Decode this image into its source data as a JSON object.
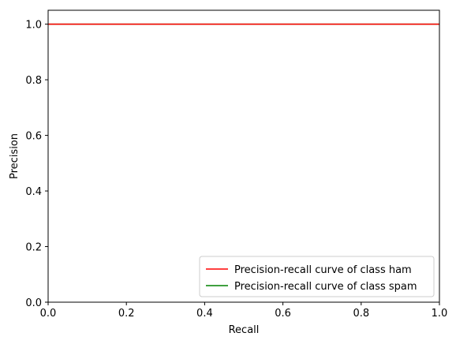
{
  "chart_data": {
    "type": "line",
    "title": "",
    "xlabel": "Recall",
    "ylabel": "Precision",
    "xlim": [
      0.0,
      1.0
    ],
    "ylim": [
      0.0,
      1.05
    ],
    "x_ticks": [
      0.0,
      0.2,
      0.4,
      0.6,
      0.8,
      1.0
    ],
    "x_tick_labels": [
      "0.0",
      "0.2",
      "0.4",
      "0.6",
      "0.8",
      "1.0"
    ],
    "y_ticks": [
      0.0,
      0.2,
      0.4,
      0.6,
      0.8,
      1.0
    ],
    "y_tick_labels": [
      "0.0",
      "0.2",
      "0.4",
      "0.6",
      "0.8",
      "1.0"
    ],
    "grid": false,
    "legend_position": "lower-right",
    "series": [
      {
        "name": "Precision-recall curve of class ham",
        "color": "#ff0000",
        "x": [
          0.0,
          1.0
        ],
        "y": [
          1.0,
          1.0
        ]
      },
      {
        "name": "Precision-recall curve of class spam",
        "color": "#008000",
        "x": [
          0.0,
          1.0
        ],
        "y": [
          1.0,
          1.0
        ]
      }
    ]
  }
}
